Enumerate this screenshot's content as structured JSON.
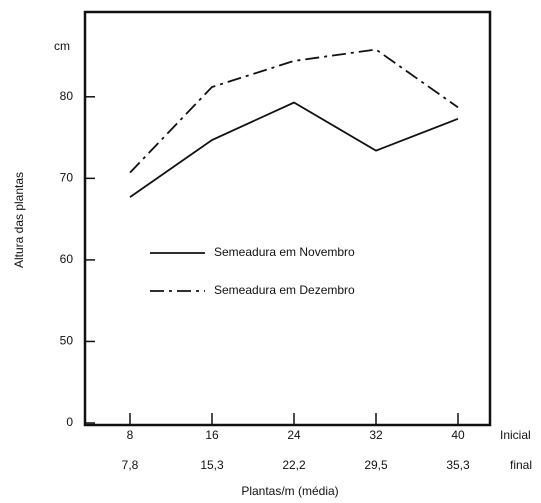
{
  "chart_data": {
    "type": "line",
    "y_label": "Altura das plantas",
    "y_unit": "cm",
    "x_label": "Plantas/m (média)",
    "row_labels": [
      "Inicial",
      "final"
    ],
    "categories": [
      "8",
      "16",
      "24",
      "32",
      "40"
    ],
    "categories_final": [
      "7,8",
      "15,3",
      "22,2",
      "29,5",
      "35,3"
    ],
    "series": [
      {
        "name": "Semeadura em Novembro",
        "color": "#111111",
        "dash": "solid",
        "values": [
          67.7,
          74.7,
          79.3,
          73.4,
          77.3
        ]
      },
      {
        "name": "Semeadura em Dezembro",
        "color": "#111111",
        "dash": "dashdot",
        "values": [
          70.7,
          81.2,
          84.4,
          85.8,
          78.7
        ]
      }
    ],
    "ylim": [
      0,
      90.4
    ],
    "yticks": [
      0,
      50,
      60,
      70,
      80
    ],
    "y_axis_break": true,
    "grid": false,
    "legend": "center-left"
  }
}
